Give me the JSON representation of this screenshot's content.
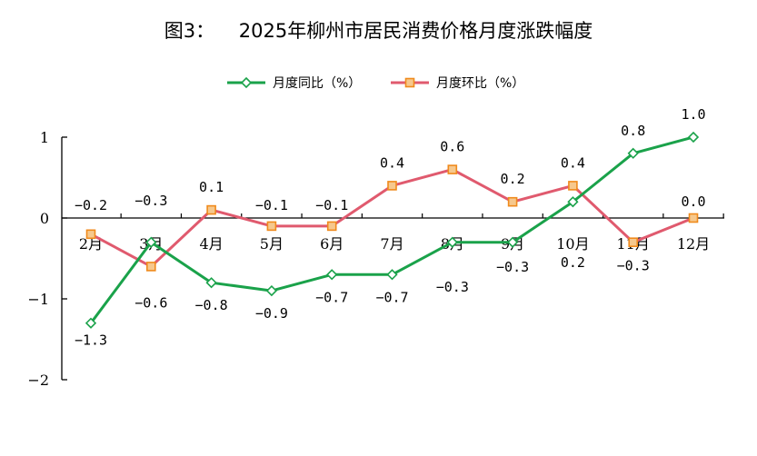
{
  "chart_data": {
    "type": "line",
    "title": "图3：    2025年柳州市居民消费价格月度涨跌幅度",
    "categories": [
      "2月",
      "3月",
      "4月",
      "5月",
      "6月",
      "7月",
      "8月",
      "9月",
      "10月",
      "11月",
      "12月"
    ],
    "ylim": [
      -2,
      1
    ],
    "yticks": [
      "1",
      "0",
      "−1",
      "−2"
    ],
    "ytick_values": [
      1,
      0,
      -1,
      -2
    ],
    "grid": false,
    "legend_position": "top-center",
    "series": [
      {
        "name": "月度同比（%）",
        "color": "#1aa24a",
        "marker": "diamond",
        "values": [
          -1.3,
          -0.3,
          -0.8,
          -0.9,
          -0.7,
          -0.7,
          -0.3,
          -0.3,
          0.2,
          0.8,
          1.0
        ],
        "labels": [
          "−1.3",
          "−0.3",
          "−0.8",
          "−0.9",
          "−0.7",
          "−0.7",
          "−0.3",
          "−0.3",
          "0.2",
          "0.8",
          "1.0"
        ]
      },
      {
        "name": "月度环比（%）",
        "color": "#e05a6e",
        "marker_fill": "#f6c88d",
        "marker_stroke": "#f08a1c",
        "marker": "square",
        "values": [
          -0.2,
          -0.6,
          0.1,
          -0.1,
          -0.1,
          0.4,
          0.6,
          0.2,
          0.4,
          -0.3,
          0.0
        ],
        "labels": [
          "−0.2",
          "−0.6",
          "0.1",
          "−0.1",
          "−0.1",
          "0.4",
          "0.6",
          "0.2",
          "0.4",
          "−0.3",
          "0.0"
        ]
      }
    ]
  }
}
